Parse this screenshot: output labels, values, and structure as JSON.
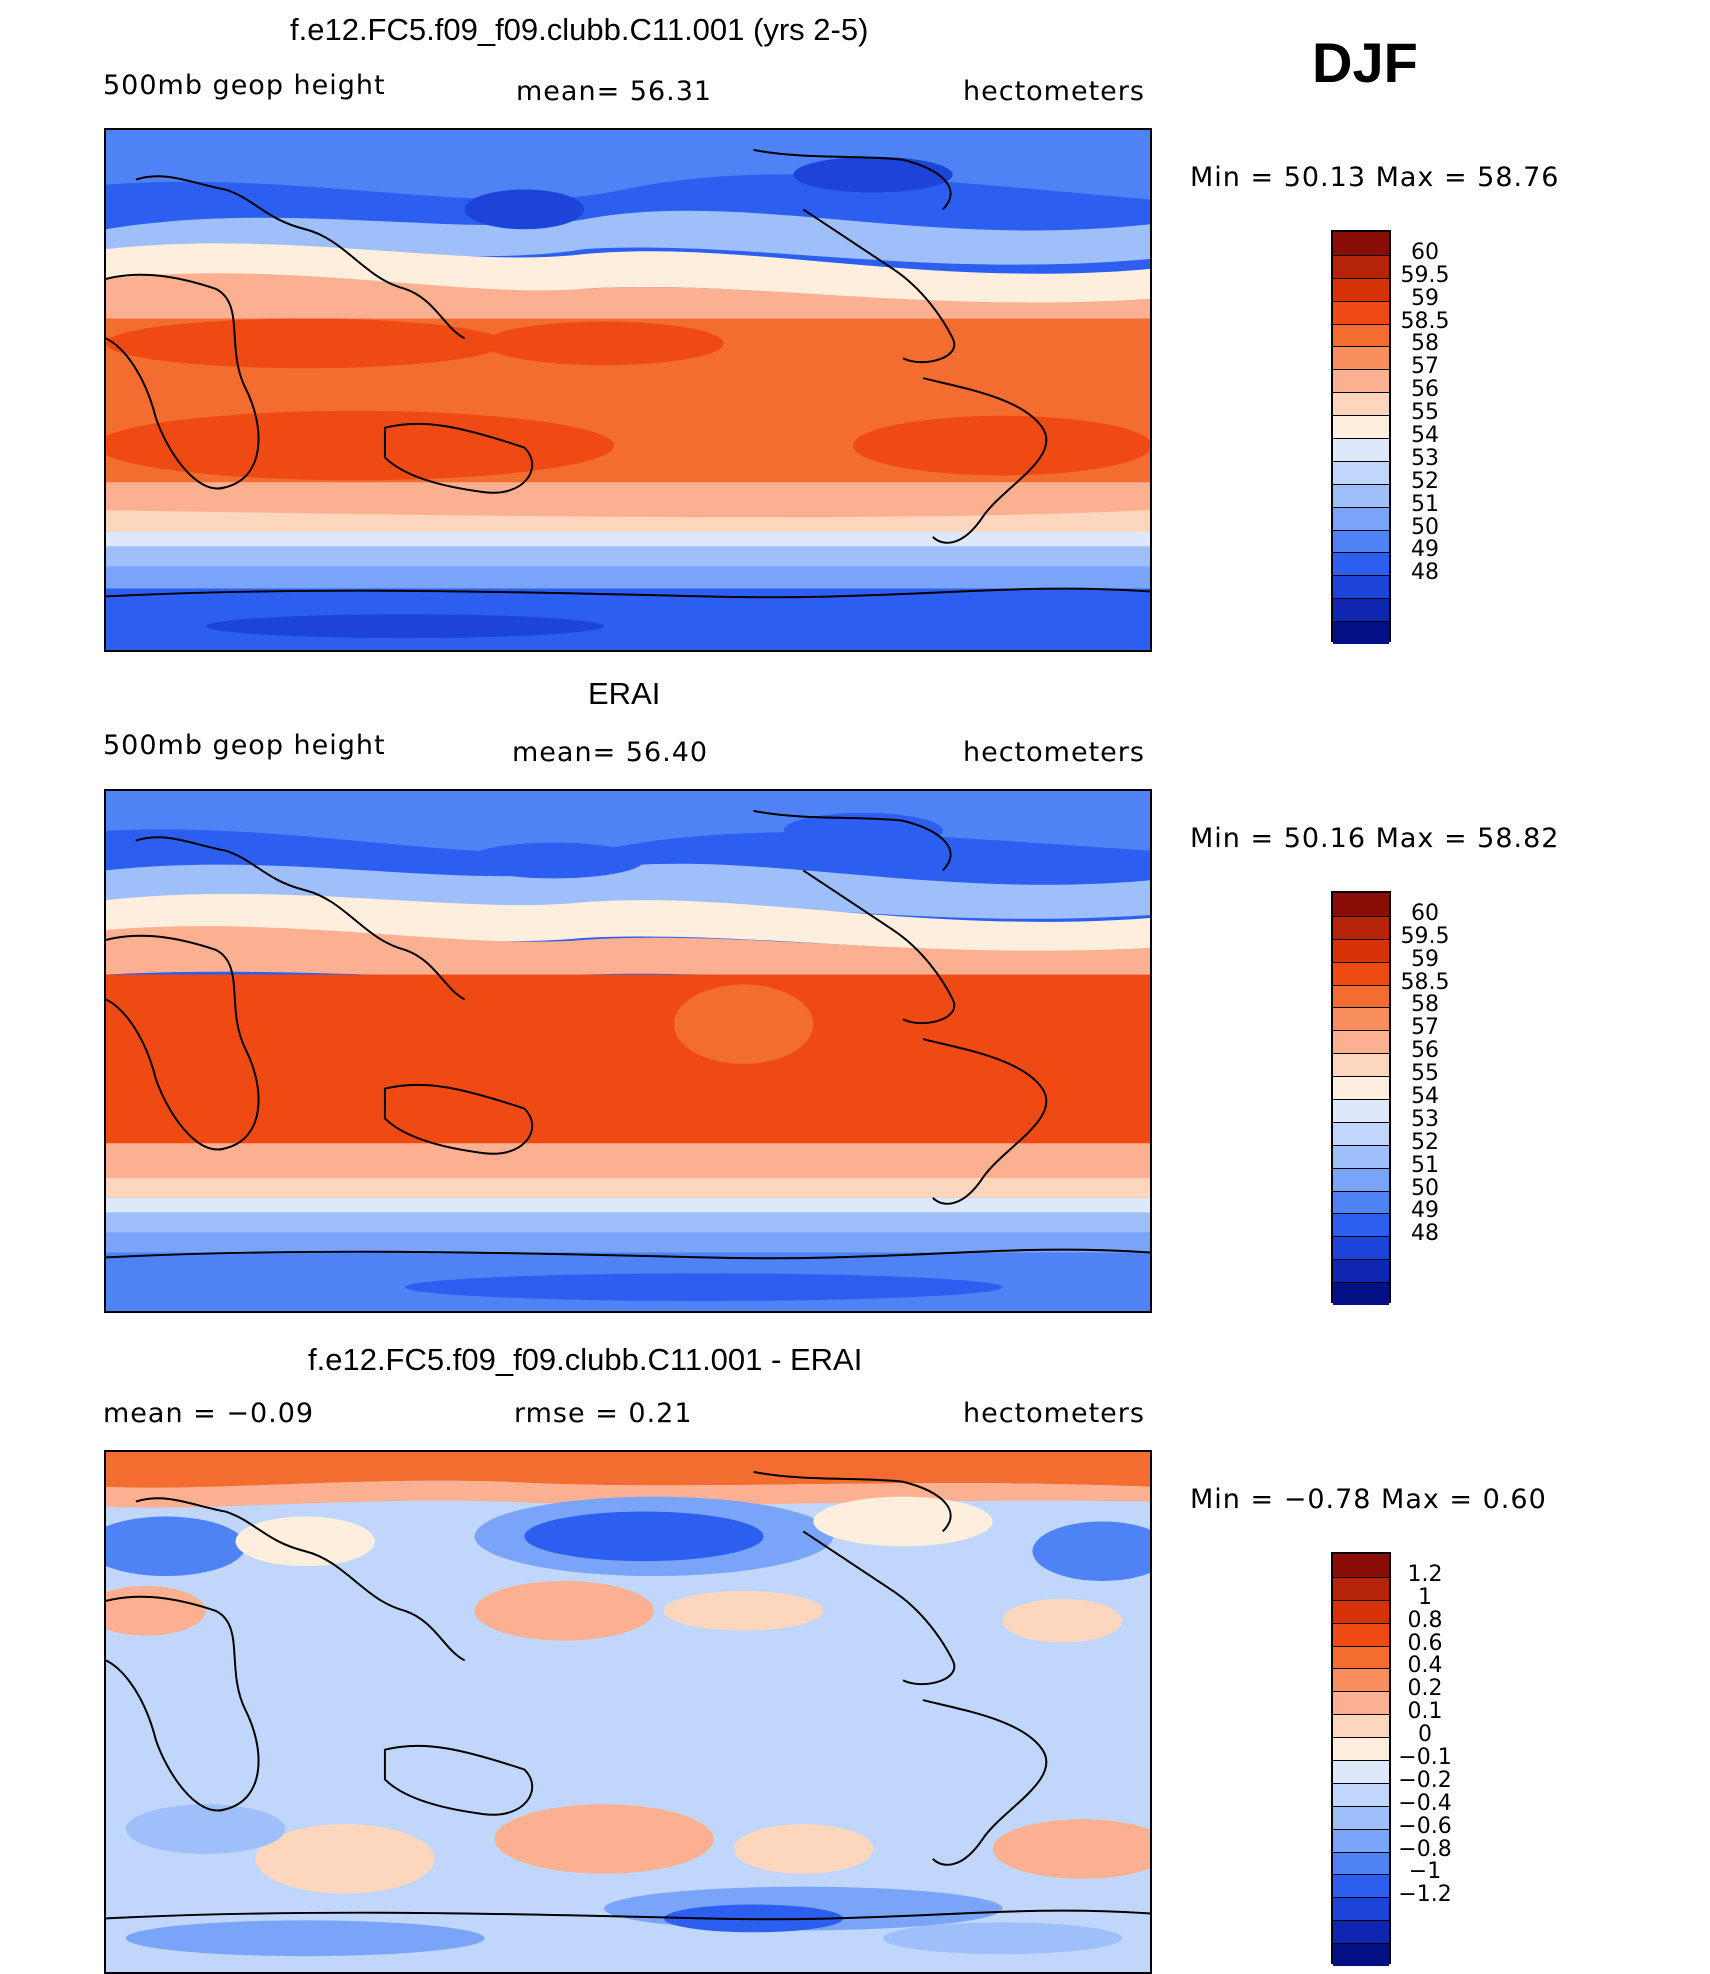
{
  "season": "DJF",
  "units": "hectometers",
  "variable": "500mb geop height",
  "panels": [
    {
      "id": "model",
      "title": "f.e12.FC5.f09_f09.clubb.C11.001 (yrs 2-5)",
      "left_label": "500mb geop height",
      "center_label": "mean=   56.31",
      "right_label": "hectometers",
      "minmax": "Min =   50.13 Max =   58.76",
      "scale": [
        "60",
        "59.5",
        "59",
        "58.5",
        "58",
        "57",
        "56",
        "55",
        "54",
        "53",
        "52",
        "51",
        "50",
        "49",
        "48"
      ],
      "colors": [
        "#8b0d08",
        "#b52309",
        "#d83209",
        "#ef4a14",
        "#f36c30",
        "#f98e5f",
        "#fbb191",
        "#fdd7bd",
        "#fdeedd",
        "#dde9fb",
        "#c0d6fa",
        "#9fbffa",
        "#7aa4f7",
        "#4f82f5",
        "#2c5ff0",
        "#1c44d8",
        "#0f27b0",
        "#041186"
      ]
    },
    {
      "id": "obs",
      "title": "ERAI",
      "left_label": "500mb geop height",
      "center_label": "mean=   56.40",
      "right_label": "hectometers",
      "minmax": "Min =   50.16 Max =   58.82",
      "scale": [
        "60",
        "59.5",
        "59",
        "58.5",
        "58",
        "57",
        "56",
        "55",
        "54",
        "53",
        "52",
        "51",
        "50",
        "49",
        "48"
      ],
      "colors": [
        "#8b0d08",
        "#b52309",
        "#d83209",
        "#ef4a14",
        "#f36c30",
        "#f98e5f",
        "#fbb191",
        "#fdd7bd",
        "#fdeedd",
        "#dde9fb",
        "#c0d6fa",
        "#9fbffa",
        "#7aa4f7",
        "#4f82f5",
        "#2c5ff0",
        "#1c44d8",
        "#0f27b0",
        "#041186"
      ]
    },
    {
      "id": "diff",
      "title": "f.e12.FC5.f09_f09.clubb.C11.001 - ERAI",
      "left_label": "mean =   −0.09",
      "center_label": "rmse =    0.21",
      "right_label": "hectometers",
      "minmax": "Min =   −0.78 Max =    0.60",
      "scale": [
        "1.2",
        "1",
        "0.8",
        "0.6",
        "0.4",
        "0.2",
        "0.1",
        "0",
        "−0.1",
        "−0.2",
        "−0.4",
        "−0.6",
        "−0.8",
        "−1",
        "−1.2"
      ],
      "colors": [
        "#8b0d08",
        "#b52309",
        "#d83209",
        "#ef4a14",
        "#f36c30",
        "#f98e5f",
        "#fbb191",
        "#fdd7bd",
        "#fdeedd",
        "#dde9fb",
        "#c0d6fa",
        "#9fbffa",
        "#7aa4f7",
        "#4f82f5",
        "#2c5ff0",
        "#1c44d8",
        "#0f27b0",
        "#041186"
      ]
    }
  ]
}
